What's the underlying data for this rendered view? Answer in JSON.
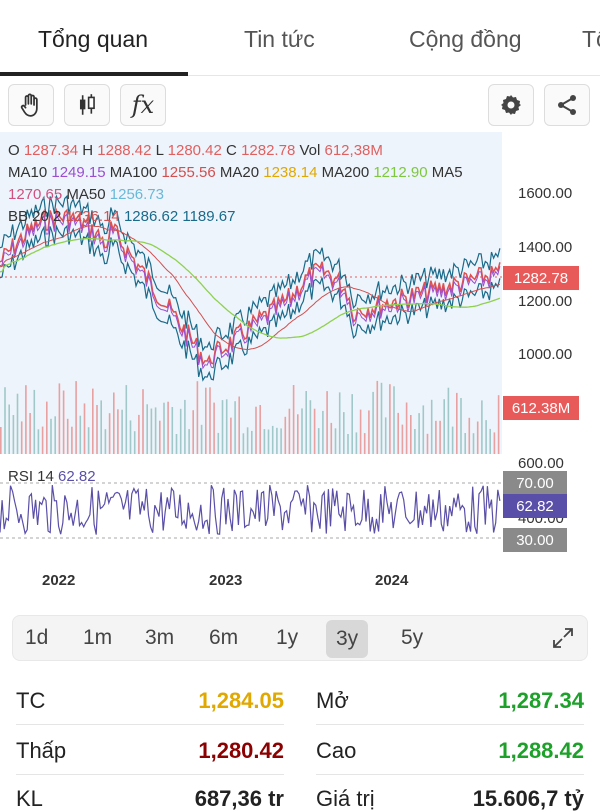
{
  "tabs": [
    "Tổng quan",
    "Tin tức",
    "Cộng đồng",
    "Tổ"
  ],
  "toolbar": {
    "hand_icon": "hand-icon",
    "candle_icon": "candlestick-icon",
    "fx_label": "fx",
    "settings_icon": "gear-icon",
    "share_icon": "share-icon"
  },
  "legend": {
    "o_label": "O",
    "o_val": "1287.34",
    "h_label": "H",
    "h_val": "1288.42",
    "l_label": "L",
    "l_val": "1280.42",
    "c_label": "C",
    "c_val": "1282.78",
    "vol_label": "Vol",
    "vol_val": "612,38M",
    "ma10_label": "MA10",
    "ma10_val": "1249.15",
    "ma100_label": "MA100",
    "ma100_val": "1255.56",
    "ma20_label": "MA20",
    "ma20_val": "1238.14",
    "ma200_label": "MA200",
    "ma200_val": "1212.90",
    "ma5_label": "MA5",
    "ma5_val": "1270.65",
    "ma50_label": "MA50",
    "ma50_val": "1256.73",
    "bb_label": "BB 20 2",
    "bb_mid": "1236.14",
    "bb_up": "1286.62",
    "bb_low": "1189.67",
    "rsi_label": "RSI 14",
    "rsi_val": "62.82"
  },
  "price_axis": [
    "1600.00",
    "1400.00",
    "1200.00",
    "1000.00"
  ],
  "vol_axis": [
    "600.00",
    "400.00"
  ],
  "price_tag": "1282.78",
  "vol_tag": "612.38M",
  "rsi_tags": [
    "70.00",
    "62.82",
    "30.00"
  ],
  "years": [
    "2022",
    "2023",
    "2024"
  ],
  "periods": [
    "1d",
    "1m",
    "3m",
    "6m",
    "1y",
    "3y",
    "5y"
  ],
  "active_period": "3y",
  "expand_icon": "expand-icon",
  "stats": [
    {
      "label": "TC",
      "value": "1,284.05",
      "color": "#e0a800"
    },
    {
      "label": "Mở",
      "value": "1,287.34",
      "color": "#1ea12a"
    },
    {
      "label": "Thấp",
      "value": "1,280.42",
      "color": "#8b0000"
    },
    {
      "label": "Cao",
      "value": "1,288.42",
      "color": "#1ea12a"
    },
    {
      "label": "KL",
      "value": "687,36 tr",
      "color": "#222"
    },
    {
      "label": "Giá trị",
      "value": "15.606,7 tỷ",
      "color": "#222"
    }
  ],
  "colors": {
    "price_up": "#e05050",
    "price_tag": "#e85a5a",
    "vol_tag": "#e85a5a",
    "rsi_line": "#5a4fa8",
    "rsi_tag": "#5a4fa8",
    "rsi_band": "#777777",
    "bb": "#1a6a8a",
    "ma50": "#7ec8e0",
    "ma200": "#8fd14f",
    "ma20": "#e0a800"
  }
}
